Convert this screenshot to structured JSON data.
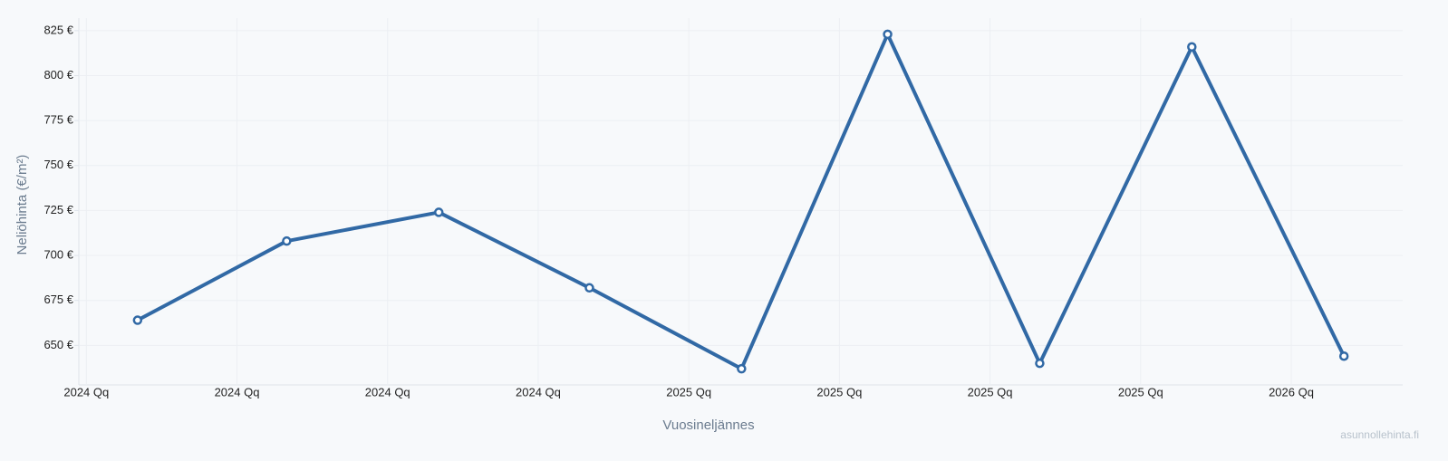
{
  "chart_data": {
    "type": "line",
    "x_label": "Vuosineljännes",
    "y_label": "Neliöhinta (€/m²)",
    "watermark": "asunnollehinta.fi",
    "x": [
      0.34,
      1.33,
      2.34,
      3.34,
      4.35,
      5.32,
      6.33,
      7.34,
      8.35
    ],
    "series": [
      {
        "name": "Neliöhinta",
        "color": "#3169a5",
        "values": [
          664,
          708,
          724,
          682,
          637,
          823,
          640,
          816,
          644
        ]
      }
    ],
    "xlim": [
      -0.05,
      8.74
    ],
    "xticks": [
      {
        "value": 0,
        "label": "2024 Qq"
      },
      {
        "value": 1,
        "label": "2024 Qq"
      },
      {
        "value": 2,
        "label": "2024 Qq"
      },
      {
        "value": 3,
        "label": "2024 Qq"
      },
      {
        "value": 4,
        "label": "2025 Qq"
      },
      {
        "value": 5,
        "label": "2025 Qq"
      },
      {
        "value": 6,
        "label": "2025 Qq"
      },
      {
        "value": 7,
        "label": "2025 Qq"
      },
      {
        "value": 8,
        "label": "2026 Qq"
      }
    ],
    "ylim": [
      628,
      832
    ],
    "yticks": [
      {
        "value": 650,
        "label": "650 €"
      },
      {
        "value": 675,
        "label": "675 €"
      },
      {
        "value": 700,
        "label": "700 €"
      },
      {
        "value": 725,
        "label": "725 €"
      },
      {
        "value": 750,
        "label": "750 €"
      },
      {
        "value": 775,
        "label": "775 €"
      },
      {
        "value": 800,
        "label": "800 €"
      },
      {
        "value": 825,
        "label": "825 €"
      }
    ],
    "grid": true
  }
}
